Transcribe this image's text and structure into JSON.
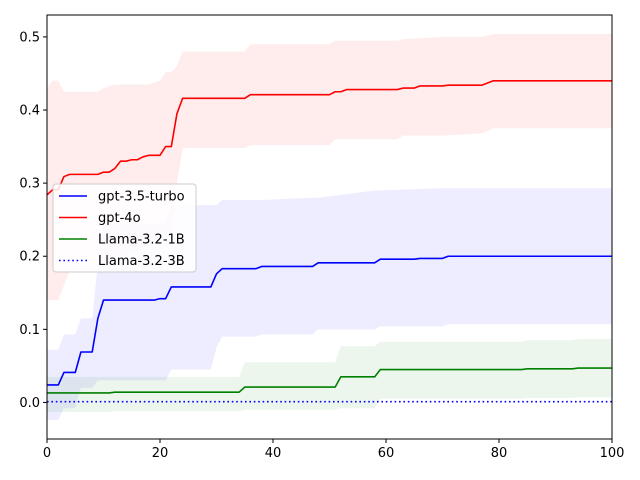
{
  "chart_data": {
    "type": "line",
    "title": "",
    "xlabel": "",
    "ylabel": "",
    "xlim": [
      0,
      100
    ],
    "ylim": [
      -0.05,
      0.53
    ],
    "xticks": [
      0,
      20,
      40,
      60,
      80,
      100
    ],
    "yticks": [
      0.0,
      0.1,
      0.2,
      0.3,
      0.4,
      0.5
    ],
    "xtick_labels": [
      "0",
      "20",
      "40",
      "60",
      "80",
      "100"
    ],
    "ytick_labels": [
      "0.0",
      "0.1",
      "0.2",
      "0.3",
      "0.4",
      "0.5"
    ],
    "grid": false,
    "legend_position": "center-left",
    "series": [
      {
        "name": "gpt-3.5-turbo",
        "color": "#0000ff",
        "linestyle": "solid",
        "points": [
          [
            0,
            0.024
          ],
          [
            2,
            0.024
          ],
          [
            3,
            0.041
          ],
          [
            5,
            0.041
          ],
          [
            6,
            0.069
          ],
          [
            8,
            0.069
          ],
          [
            9,
            0.115
          ],
          [
            10,
            0.14
          ],
          [
            19,
            0.14
          ],
          [
            20,
            0.142
          ],
          [
            21,
            0.142
          ],
          [
            22,
            0.158
          ],
          [
            29,
            0.158
          ],
          [
            30,
            0.176
          ],
          [
            31,
            0.183
          ],
          [
            37,
            0.183
          ],
          [
            38,
            0.186
          ],
          [
            47,
            0.186
          ],
          [
            48,
            0.191
          ],
          [
            58,
            0.191
          ],
          [
            59,
            0.196
          ],
          [
            65,
            0.196
          ],
          [
            66,
            0.197
          ],
          [
            70,
            0.197
          ],
          [
            71,
            0.2
          ],
          [
            100,
            0.2
          ]
        ],
        "band": [
          [
            0,
            -0.024,
            0.072
          ],
          [
            2,
            -0.024,
            0.072
          ],
          [
            3,
            -0.008,
            0.093
          ],
          [
            5,
            -0.008,
            0.093
          ],
          [
            6,
            0.02,
            0.115
          ],
          [
            8,
            0.02,
            0.115
          ],
          [
            9,
            0.03,
            0.19
          ],
          [
            10,
            0.03,
            0.245
          ],
          [
            21,
            0.03,
            0.245
          ],
          [
            22,
            0.045,
            0.27
          ],
          [
            29,
            0.045,
            0.27
          ],
          [
            30,
            0.075,
            0.27
          ],
          [
            31,
            0.09,
            0.277
          ],
          [
            37,
            0.09,
            0.277
          ],
          [
            38,
            0.093,
            0.277
          ],
          [
            47,
            0.093,
            0.28
          ],
          [
            48,
            0.1,
            0.28
          ],
          [
            58,
            0.1,
            0.29
          ],
          [
            59,
            0.104,
            0.29
          ],
          [
            70,
            0.104,
            0.293
          ],
          [
            71,
            0.107,
            0.293
          ],
          [
            100,
            0.107,
            0.293
          ]
        ]
      },
      {
        "name": "gpt-4o",
        "color": "#ff0000",
        "linestyle": "solid",
        "points": [
          [
            0,
            0.284
          ],
          [
            1,
            0.291
          ],
          [
            2,
            0.291
          ],
          [
            3,
            0.309
          ],
          [
            4,
            0.312
          ],
          [
            9,
            0.312
          ],
          [
            10,
            0.315
          ],
          [
            11,
            0.315
          ],
          [
            12,
            0.32
          ],
          [
            13,
            0.33
          ],
          [
            14,
            0.33
          ],
          [
            15,
            0.332
          ],
          [
            16,
            0.332
          ],
          [
            17,
            0.336
          ],
          [
            18,
            0.338
          ],
          [
            20,
            0.338
          ],
          [
            21,
            0.35
          ],
          [
            22,
            0.35
          ],
          [
            23,
            0.395
          ],
          [
            24,
            0.416
          ],
          [
            33,
            0.416
          ],
          [
            35,
            0.416
          ],
          [
            36,
            0.421
          ],
          [
            50,
            0.421
          ],
          [
            51,
            0.425
          ],
          [
            52,
            0.425
          ],
          [
            53,
            0.428
          ],
          [
            62,
            0.428
          ],
          [
            63,
            0.43
          ],
          [
            65,
            0.43
          ],
          [
            66,
            0.433
          ],
          [
            70,
            0.433
          ],
          [
            71,
            0.434
          ],
          [
            77,
            0.434
          ],
          [
            79,
            0.44
          ],
          [
            100,
            0.44
          ]
        ],
        "band": [
          [
            0,
            0.14,
            0.43
          ],
          [
            1,
            0.14,
            0.44
          ],
          [
            2,
            0.14,
            0.44
          ],
          [
            3,
            0.16,
            0.425
          ],
          [
            4,
            0.18,
            0.425
          ],
          [
            9,
            0.18,
            0.425
          ],
          [
            10,
            0.19,
            0.43
          ],
          [
            12,
            0.195,
            0.435
          ],
          [
            13,
            0.2,
            0.435
          ],
          [
            16,
            0.205,
            0.435
          ],
          [
            18,
            0.22,
            0.435
          ],
          [
            20,
            0.22,
            0.44
          ],
          [
            21,
            0.23,
            0.452
          ],
          [
            22,
            0.23,
            0.452
          ],
          [
            23,
            0.3,
            0.46
          ],
          [
            24,
            0.348,
            0.48
          ],
          [
            35,
            0.348,
            0.48
          ],
          [
            36,
            0.352,
            0.49
          ],
          [
            50,
            0.352,
            0.49
          ],
          [
            51,
            0.36,
            0.495
          ],
          [
            62,
            0.36,
            0.495
          ],
          [
            63,
            0.365,
            0.497
          ],
          [
            70,
            0.365,
            0.5
          ],
          [
            77,
            0.368,
            0.5
          ],
          [
            79,
            0.375,
            0.504
          ],
          [
            100,
            0.375,
            0.504
          ]
        ]
      },
      {
        "name": "Llama-3.2-1B",
        "color": "#008000",
        "linestyle": "solid",
        "points": [
          [
            0,
            0.013
          ],
          [
            11,
            0.013
          ],
          [
            12,
            0.014
          ],
          [
            34,
            0.014
          ],
          [
            35,
            0.021
          ],
          [
            51,
            0.021
          ],
          [
            52,
            0.035
          ],
          [
            58,
            0.035
          ],
          [
            59,
            0.045
          ],
          [
            70,
            0.045
          ],
          [
            71,
            0.045
          ],
          [
            84,
            0.045
          ],
          [
            85,
            0.046
          ],
          [
            93,
            0.046
          ],
          [
            94,
            0.047
          ],
          [
            100,
            0.047
          ]
        ],
        "band": [
          [
            0,
            -0.013,
            0.035
          ],
          [
            11,
            -0.013,
            0.035
          ],
          [
            12,
            -0.012,
            0.035
          ],
          [
            34,
            -0.012,
            0.035
          ],
          [
            35,
            -0.01,
            0.055
          ],
          [
            51,
            -0.01,
            0.055
          ],
          [
            52,
            -0.008,
            0.077
          ],
          [
            58,
            -0.008,
            0.077
          ],
          [
            59,
            0.005,
            0.083
          ],
          [
            84,
            0.005,
            0.083
          ],
          [
            85,
            0.006,
            0.085
          ],
          [
            93,
            0.006,
            0.085
          ],
          [
            94,
            0.007,
            0.087
          ],
          [
            100,
            0.007,
            0.087
          ]
        ]
      },
      {
        "name": "Llama-3.2-3B",
        "color": "#0000ff",
        "linestyle": "dotted",
        "points": [
          [
            0,
            0.001
          ],
          [
            100,
            0.001
          ]
        ],
        "band": []
      }
    ]
  }
}
